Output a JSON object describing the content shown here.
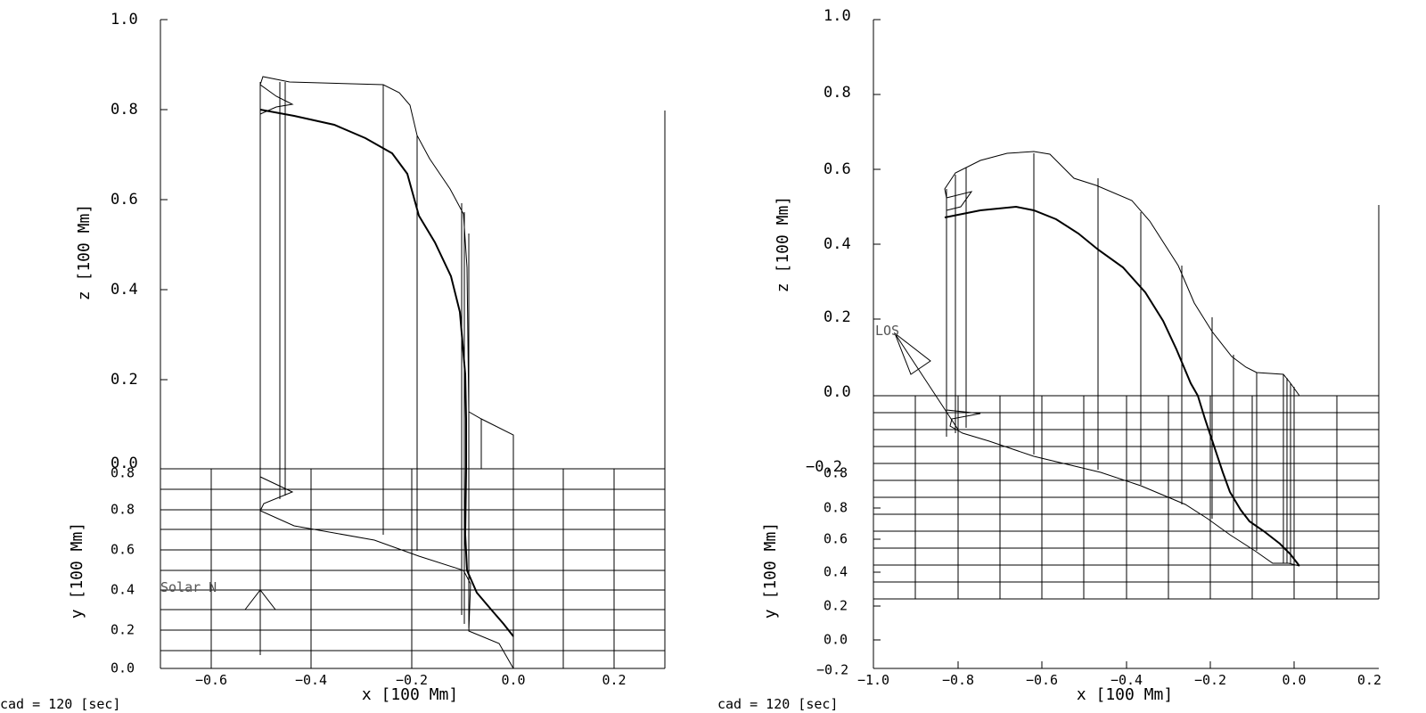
{
  "left_panel": {
    "z_axis": {
      "title": "z [100 Mm]",
      "ticks": [
        "1.0",
        "0.8",
        "0.6",
        "0.4",
        "0.2",
        "0.0"
      ]
    },
    "y_axis": {
      "title": "y [100 Mm]",
      "ticks": [
        "0.8",
        "0.6",
        "0.4",
        "0.2",
        "0.0"
      ],
      "overlap_label": "0.8"
    },
    "x_axis": {
      "title": "x [100 Mm]",
      "ticks": [
        "−0.6",
        "−0.4",
        "−0.2",
        "0.0",
        "0.2"
      ]
    },
    "annotation": "Solar N",
    "caption": "cad =  120 [sec]"
  },
  "right_panel": {
    "z_axis": {
      "title": "z [100 Mm]",
      "ticks": [
        "1.0",
        "0.8",
        "0.6",
        "0.4",
        "0.2",
        "0.0",
        "−0.2"
      ]
    },
    "y_axis": {
      "title": "y [100 Mm]",
      "ticks": [
        "0.8",
        "0.6",
        "0.4",
        "0.2",
        "0.0",
        "−0.2"
      ],
      "overlap_label": "0.8"
    },
    "x_axis": {
      "title": "x [100 Mm]",
      "ticks": [
        "−1.0",
        "−0.8",
        "−0.6",
        "−0.4",
        "−0.2",
        "0.0",
        "0.2"
      ]
    },
    "annotation": "LOS",
    "caption": "cad =  120 [sec]"
  },
  "colors": {
    "ink": "#000000",
    "annotation": "#555555",
    "background": "#ffffff"
  }
}
